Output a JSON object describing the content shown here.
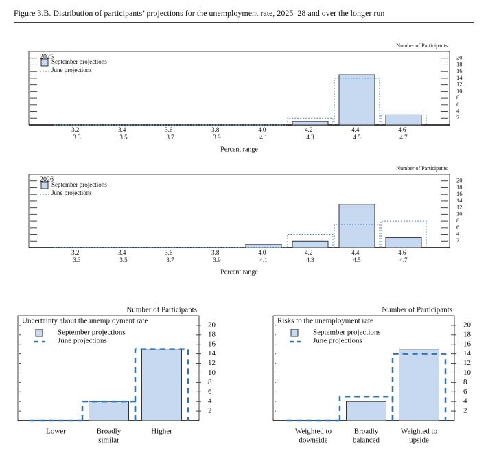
{
  "title": "Figure 3.B. Distribution of participants’ projections for the unemployment rate, 2025–28 and over the longer run",
  "chart_data": [
    {
      "type": "bar",
      "title": "2025",
      "y_label": "Number of Participants",
      "x_label": "Percent range",
      "categories": [
        [
          "3.2–",
          "3.3"
        ],
        [
          "3.4–",
          "3.5"
        ],
        [
          "3.6–",
          "3.7"
        ],
        [
          "3.8–",
          "3.9"
        ],
        [
          "4.0–",
          "4.1"
        ],
        [
          "4.2–",
          "4.3"
        ],
        [
          "4.4–",
          "4.5"
        ],
        [
          "4.6–",
          "4.7"
        ]
      ],
      "series": [
        {
          "name": "September projections",
          "color": "#c6d9f1",
          "values": [
            0,
            0,
            0,
            0,
            0,
            1,
            15,
            3
          ]
        },
        {
          "name": "June projections",
          "color": "#4f81bd",
          "values": [
            0,
            0,
            0,
            0,
            0,
            2,
            14,
            3
          ]
        }
      ],
      "ylim": [
        0,
        22
      ],
      "yticks": [
        2,
        4,
        6,
        8,
        10,
        12,
        14,
        16,
        18,
        20
      ]
    },
    {
      "type": "bar",
      "title": "2026",
      "y_label": "Number of Participants",
      "x_label": "Percent range",
      "categories": [
        [
          "3.2–",
          "3.3"
        ],
        [
          "3.4–",
          "3.5"
        ],
        [
          "3.6–",
          "3.7"
        ],
        [
          "3.8–",
          "3.9"
        ],
        [
          "4.0–",
          "4.1"
        ],
        [
          "4.2–",
          "4.3"
        ],
        [
          "4.4–",
          "4.5"
        ],
        [
          "4.6–",
          "4.7"
        ]
      ],
      "series": [
        {
          "name": "September projections",
          "color": "#c6d9f1",
          "values": [
            0,
            0,
            0,
            0,
            1,
            2,
            13,
            3
          ]
        },
        {
          "name": "June projections",
          "color": "#4f81bd",
          "values": [
            0,
            0,
            0,
            0,
            0,
            4,
            7,
            8
          ]
        }
      ],
      "ylim": [
        0,
        22
      ],
      "yticks": [
        2,
        4,
        6,
        8,
        10,
        12,
        14,
        16,
        18,
        20
      ]
    },
    {
      "type": "bar",
      "title": "Uncertainty about the unemployment rate",
      "y_label": "Number of Participants",
      "categories": [
        [
          "Lower"
        ],
        [
          "Broadly",
          "similar"
        ],
        [
          "Higher"
        ]
      ],
      "series": [
        {
          "name": "September projections",
          "color": "#c6d9f1",
          "values": [
            0,
            4,
            15
          ]
        },
        {
          "name": "June projections",
          "color": "#2e75b6",
          "values": [
            0,
            4,
            15
          ]
        }
      ],
      "ylim": [
        0,
        22
      ],
      "yticks": [
        2,
        4,
        6,
        8,
        10,
        12,
        14,
        16,
        18,
        20
      ]
    },
    {
      "type": "bar",
      "title": "Risks to the unemployment rate",
      "y_label": "Number of Participants",
      "categories": [
        [
          "Weighted to",
          "downside"
        ],
        [
          "Broadly",
          "balanced"
        ],
        [
          "Weighted to",
          "upside"
        ]
      ],
      "series": [
        {
          "name": "September projections",
          "color": "#c6d9f1",
          "values": [
            0,
            4,
            15
          ]
        },
        {
          "name": "June projections",
          "color": "#2e75b6",
          "values": [
            0,
            5,
            14
          ]
        }
      ],
      "ylim": [
        0,
        22
      ],
      "yticks": [
        2,
        4,
        6,
        8,
        10,
        12,
        14,
        16,
        18,
        20
      ]
    }
  ]
}
